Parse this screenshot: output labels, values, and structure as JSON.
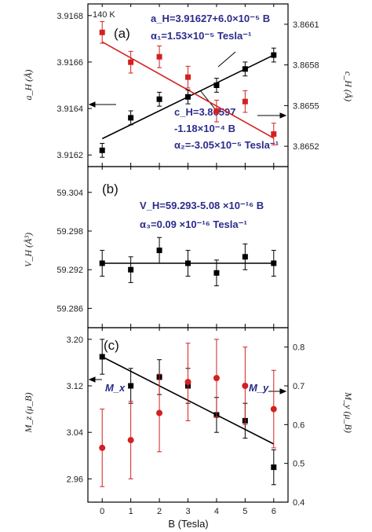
{
  "chart_data": [
    {
      "type": "scatter",
      "panel_label": "(a)",
      "corner_text": "140 K",
      "xlim": [
        -0.5,
        6.5
      ],
      "ylabel": "a_H (Å)",
      "ylim": [
        3.91615,
        3.91685
      ],
      "yticks": [
        "3.9162",
        "3.9164",
        "3.9166",
        "3.9168"
      ],
      "y2label": "c_H (Å)",
      "y2lim": [
        3.86505,
        3.86625
      ],
      "y2ticks": [
        "3.8652",
        "3.8655",
        "3.8658",
        "3.8661"
      ],
      "series": [
        {
          "name": "a_H",
          "axis": "left",
          "color": "#000000",
          "x": [
            0,
            1,
            2,
            3,
            4,
            5,
            6
          ],
          "y": [
            3.91622,
            3.91636,
            3.91644,
            3.91645,
            3.9165,
            3.91657,
            3.91663
          ],
          "err": [
            3e-05,
            3e-05,
            3e-05,
            3e-05,
            3e-05,
            3e-05,
            3e-05
          ]
        },
        {
          "name": "c_H",
          "axis": "right",
          "color": "#d42020",
          "x": [
            0,
            1,
            2,
            3,
            4,
            5,
            6
          ],
          "y": [
            3.86604,
            3.86582,
            3.86586,
            3.86571,
            3.86546,
            3.86553,
            3.86529
          ],
          "err": [
            8e-05,
            8e-05,
            8e-05,
            8e-05,
            8e-05,
            8e-05,
            8e-05
          ]
        }
      ],
      "fits": [
        {
          "axis": "left",
          "color": "#000000",
          "x": [
            0,
            6
          ],
          "y": [
            3.91627,
            3.91663
          ]
        },
        {
          "axis": "right",
          "color": "#d42020",
          "x": [
            0,
            6
          ],
          "y": [
            3.86597,
            3.86526
          ]
        }
      ],
      "annotations": [
        "a_H=3.91627+6.0×10⁻⁵ B",
        "α₁=1.53×10⁻⁵ Tesla⁻¹",
        "c_H=3.86597",
        "-1.18×10⁻⁴ B",
        "α₂=-3.05×10⁻⁵ Tesla⁻¹"
      ]
    },
    {
      "type": "scatter",
      "panel_label": "(b)",
      "xlim": [
        -0.5,
        6.5
      ],
      "ylabel": "V_H (Å³)",
      "ylim": [
        59.283,
        59.308
      ],
      "yticks": [
        "59.286",
        "59.292",
        "59.298",
        "59.304"
      ],
      "series": [
        {
          "name": "V_H",
          "axis": "left",
          "color": "#000000",
          "x": [
            0,
            1,
            2,
            3,
            4,
            5,
            6
          ],
          "y": [
            59.293,
            59.292,
            59.295,
            59.293,
            59.2915,
            59.294,
            59.293
          ],
          "err": [
            0.002,
            0.002,
            0.002,
            0.002,
            0.002,
            0.002,
            0.002
          ]
        }
      ],
      "fits": [
        {
          "axis": "left",
          "color": "#000000",
          "x": [
            0,
            6
          ],
          "y": [
            59.293,
            59.293
          ]
        }
      ],
      "annotations": [
        "V_H=59.293-5.08 ×10⁻¹⁶ B",
        "α₃=0.09 ×10⁻¹⁶ Tesla⁻¹"
      ]
    },
    {
      "type": "scatter",
      "panel_label": "(c)",
      "xlim": [
        -0.5,
        6.5
      ],
      "xlabel": "B (Tesla)",
      "xticks": [
        "0",
        "1",
        "2",
        "3",
        "4",
        "5",
        "6"
      ],
      "ylabel": "M_z (μ_B)",
      "ylim": [
        2.92,
        3.22
      ],
      "yticks": [
        "2.96",
        "3.04",
        "3.12",
        "3.20"
      ],
      "y2label": "M_y (μ_B)",
      "y2lim": [
        0.4,
        0.85
      ],
      "y2ticks": [
        "0.4",
        "0.5",
        "0.6",
        "0.7",
        "0.8"
      ],
      "series": [
        {
          "name": "M_x",
          "axis": "left",
          "color": "#000000",
          "x": [
            0,
            1,
            2,
            3,
            4,
            5,
            6
          ],
          "y": [
            3.17,
            3.12,
            3.135,
            3.12,
            3.07,
            3.06,
            2.98
          ],
          "err": [
            0.03,
            0.03,
            0.03,
            0.03,
            0.03,
            0.03,
            0.03
          ]
        },
        {
          "name": "M_y",
          "axis": "right",
          "color": "#d42020",
          "x": [
            0,
            1,
            2,
            3,
            4,
            5,
            6
          ],
          "y": [
            0.54,
            0.56,
            0.63,
            0.71,
            0.72,
            0.7,
            0.64
          ],
          "err": [
            0.1,
            0.1,
            0.1,
            0.1,
            0.1,
            0.1,
            0.1
          ]
        }
      ],
      "fits": [
        {
          "axis": "left",
          "color": "#000000",
          "x": [
            0,
            6
          ],
          "y": [
            3.17,
            3.02
          ]
        }
      ],
      "annotations": [
        "M_x",
        "M_y"
      ]
    }
  ]
}
